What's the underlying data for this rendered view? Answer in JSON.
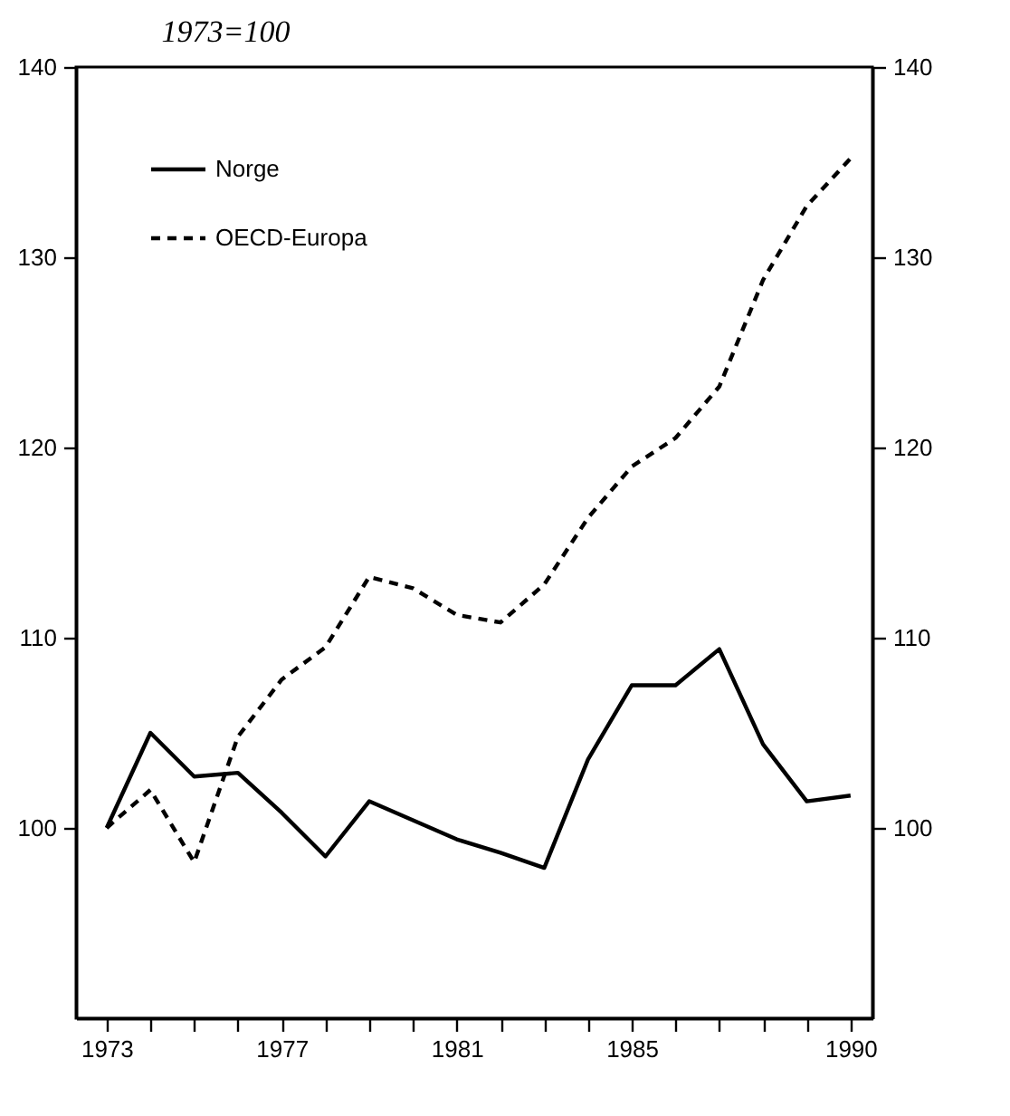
{
  "chart_data": {
    "type": "line",
    "title": "1973=100",
    "x": [
      1973,
      1974,
      1975,
      1976,
      1977,
      1978,
      1979,
      1980,
      1981,
      1982,
      1983,
      1984,
      1985,
      1986,
      1987,
      1988,
      1989,
      1990
    ],
    "series": [
      {
        "name": "Norge",
        "color": "#000000",
        "line_style": "solid",
        "values": [
          100,
          105.0,
          102.7,
          102.9,
          100.8,
          98.5,
          101.4,
          100.4,
          99.4,
          98.7,
          97.9,
          103.6,
          107.5,
          107.5,
          109.4,
          104.4,
          101.4,
          101.7
        ]
      },
      {
        "name": "OECD-Europa",
        "color": "#000000",
        "line_style": "dashed",
        "values": [
          100,
          102.0,
          98.2,
          104.8,
          107.8,
          109.5,
          113.2,
          112.6,
          111.2,
          110.8,
          112.8,
          116.3,
          119.0,
          120.5,
          123.2,
          128.8,
          132.7,
          135.2
        ]
      }
    ],
    "xlim": [
      1972.3,
      1990.5
    ],
    "xticks": [
      1973,
      {
        "value": 1974,
        "label": null
      },
      {
        "value": 1975,
        "label": null
      },
      {
        "value": 1976,
        "label": null
      },
      1977,
      {
        "value": 1978,
        "label": null
      },
      {
        "value": 1979,
        "label": null
      },
      {
        "value": 1980,
        "label": null
      },
      1981,
      {
        "value": 1982,
        "label": null
      },
      {
        "value": 1983,
        "label": null
      },
      {
        "value": 1984,
        "label": null
      },
      1985,
      {
        "value": 1986,
        "label": null
      },
      {
        "value": 1987,
        "label": null
      },
      {
        "value": 1988,
        "label": null
      },
      {
        "value": 1989,
        "label": null
      },
      1990
    ],
    "ylim": [
      90,
      140
    ],
    "yticks": [
      100,
      110,
      120,
      130,
      140
    ],
    "y2lim": [
      90,
      140
    ],
    "y2ticks": [
      100,
      110,
      120,
      130,
      140
    ],
    "grid": false,
    "legend": "top left",
    "marker": "none"
  }
}
